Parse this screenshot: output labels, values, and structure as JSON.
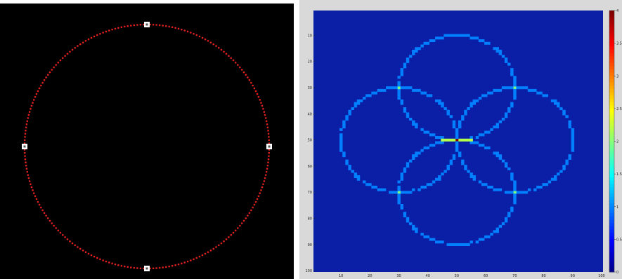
{
  "left_figure": {
    "background": "#000000",
    "circle_color": "#e02020",
    "marker_color": "#ffffff",
    "circle_markers": [
      "top",
      "left",
      "right",
      "bottom"
    ]
  },
  "right_figure": {
    "colormap": "jet",
    "background_value": 0,
    "axes": {
      "x_ticks": [
        "10",
        "20",
        "30",
        "40",
        "50",
        "60",
        "70",
        "80",
        "90",
        "100"
      ],
      "y_ticks": [
        "10",
        "20",
        "30",
        "40",
        "50",
        "60",
        "70",
        "80",
        "90",
        "100"
      ]
    },
    "colorbar": {
      "ticks": [
        "4",
        "3.5",
        "3",
        "2.5",
        "2",
        "1.5",
        "1",
        "0.5",
        "0"
      ],
      "range": [
        0,
        4
      ]
    },
    "shapes": [
      {
        "type": "circle",
        "center": [
          50,
          30
        ],
        "radius": 20
      },
      {
        "type": "circle",
        "center": [
          30,
          50
        ],
        "radius": 20
      },
      {
        "type": "circle",
        "center": [
          70,
          50
        ],
        "radius": 20
      },
      {
        "type": "circle",
        "center": [
          50,
          70
        ],
        "radius": 20
      }
    ],
    "ring_value": 1,
    "overlap_values": [
      {
        "x": 30,
        "y": 30,
        "value": 2
      },
      {
        "x": 70,
        "y": 30,
        "value": 2
      },
      {
        "x": 30,
        "y": 70,
        "value": 2
      },
      {
        "x": 70,
        "y": 70,
        "value": 2
      },
      {
        "x": 50,
        "y": 50,
        "value": 4
      }
    ],
    "center_band": {
      "y": 50,
      "x_range": [
        45,
        55
      ],
      "value": 2.2
    }
  }
}
